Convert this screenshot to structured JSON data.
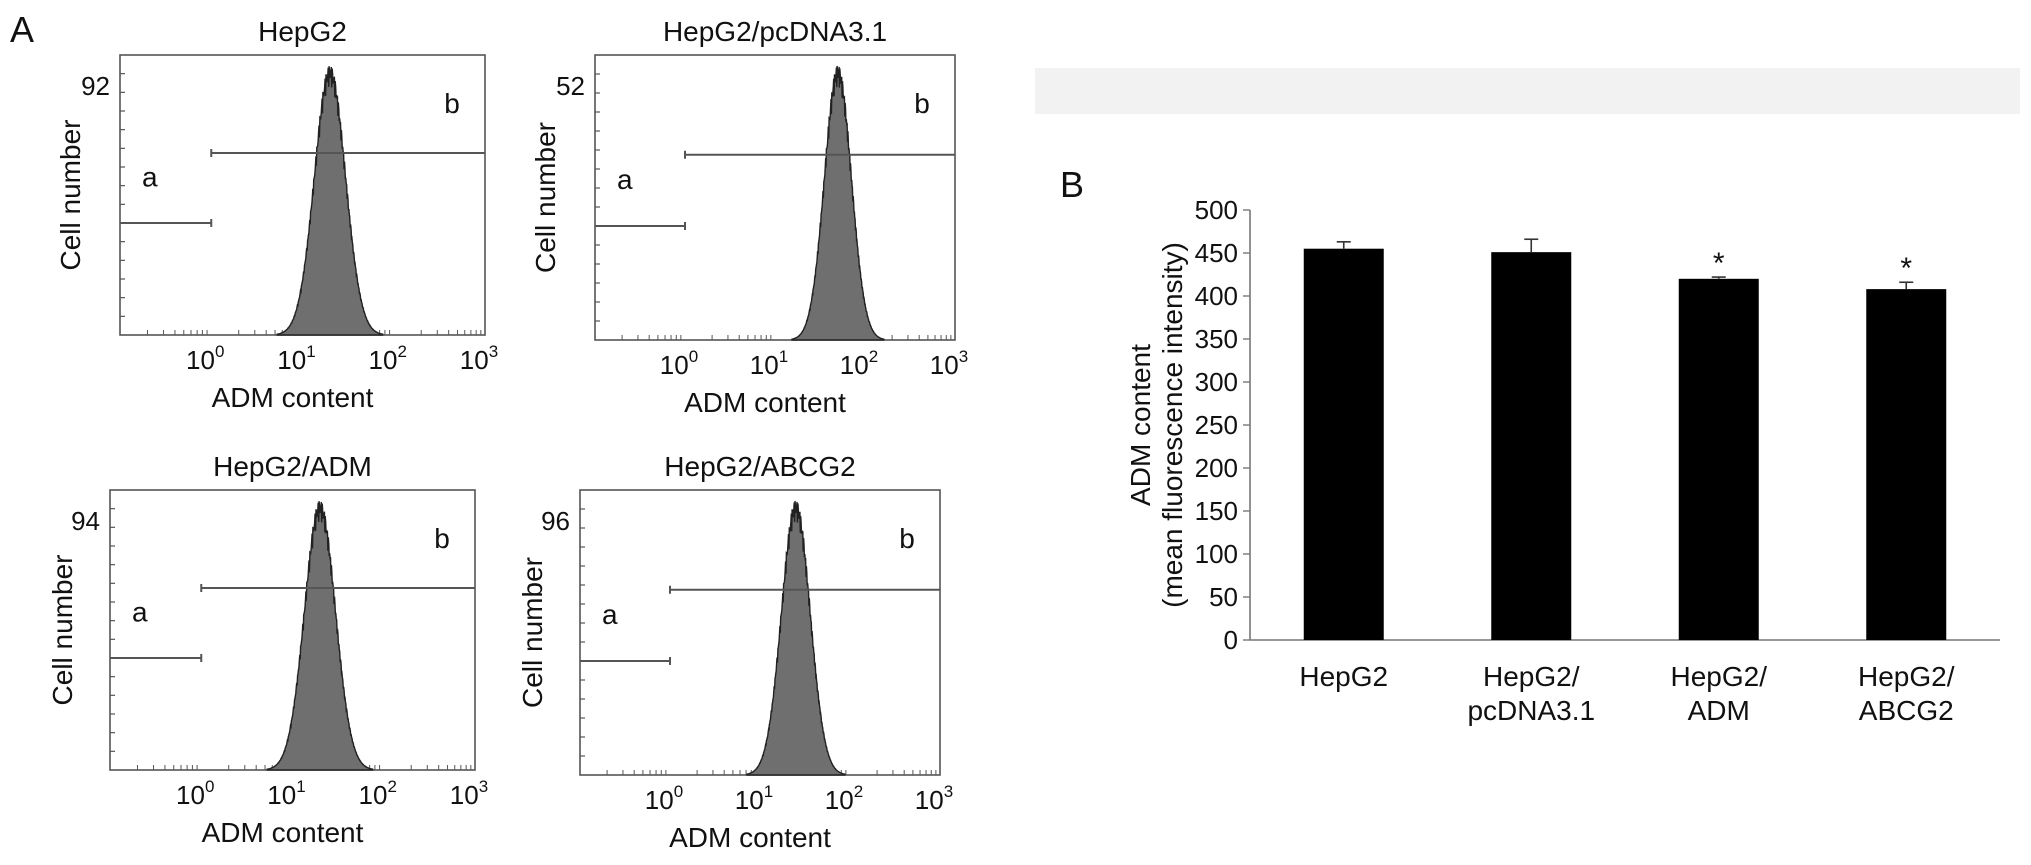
{
  "figure": {
    "panel_a_letter": "A",
    "panel_b_letter": "B"
  },
  "colors": {
    "histogram_fill": "#6f6f6f",
    "histogram_stroke": "#222222",
    "bar_fill": "#000000",
    "axis": "#555555",
    "marker_line": "#e6e6e6"
  },
  "chart_data": [
    {
      "type": "area",
      "title": "HepG2",
      "xlabel": "ADM content",
      "ylabel": "Cell number",
      "x_scale": "log",
      "xlim": [
        0.1,
        1000
      ],
      "x_ticks": [
        {
          "base": "10",
          "exp": "0"
        },
        {
          "base": "10",
          "exp": "1"
        },
        {
          "base": "10",
          "exp": "2"
        },
        {
          "base": "10",
          "exp": "3"
        }
      ],
      "y_max_label": "92",
      "peak_label": "92",
      "gates": [
        {
          "name": "a",
          "from": 0.1,
          "to": 1
        },
        {
          "name": "b",
          "from": 1,
          "to": 1000
        }
      ],
      "distribution": {
        "peak": 20,
        "spread_log10": 0.17
      }
    },
    {
      "type": "area",
      "title": "HepG2/pcDNA3.1",
      "xlabel": "ADM content",
      "ylabel": "Cell number",
      "x_scale": "log",
      "xlim": [
        0.1,
        1000
      ],
      "x_ticks": [
        {
          "base": "10",
          "exp": "0"
        },
        {
          "base": "10",
          "exp": "1"
        },
        {
          "base": "10",
          "exp": "2"
        },
        {
          "base": "10",
          "exp": "3"
        }
      ],
      "y_max_label": "52",
      "peak_label": "52",
      "gates": [
        {
          "name": "a",
          "from": 0.1,
          "to": 1
        },
        {
          "name": "b",
          "from": 1,
          "to": 1000
        }
      ],
      "distribution": {
        "peak": 50,
        "spread_log10": 0.15
      }
    },
    {
      "type": "area",
      "title": "HepG2/ADM",
      "xlabel": "ADM content",
      "ylabel": "Cell number",
      "x_scale": "log",
      "xlim": [
        0.1,
        1000
      ],
      "x_ticks": [
        {
          "base": "10",
          "exp": "0"
        },
        {
          "base": "10",
          "exp": "1"
        },
        {
          "base": "10",
          "exp": "2"
        },
        {
          "base": "10",
          "exp": "3"
        }
      ],
      "y_max_label": "94",
      "peak_label": "94",
      "gates": [
        {
          "name": "a",
          "from": 0.1,
          "to": 1
        },
        {
          "name": "b",
          "from": 1,
          "to": 1000
        }
      ],
      "distribution": {
        "peak": 20,
        "spread_log10": 0.17
      }
    },
    {
      "type": "area",
      "title": "HepG2/ABCG2",
      "xlabel": "ADM content",
      "ylabel": "Cell number",
      "x_scale": "log",
      "xlim": [
        0.1,
        1000
      ],
      "x_ticks": [
        {
          "base": "10",
          "exp": "0"
        },
        {
          "base": "10",
          "exp": "1"
        },
        {
          "base": "10",
          "exp": "2"
        },
        {
          "base": "10",
          "exp": "3"
        }
      ],
      "y_max_label": "96",
      "peak_label": "96",
      "gates": [
        {
          "name": "a",
          "from": 0.1,
          "to": 1
        },
        {
          "name": "b",
          "from": 1,
          "to": 1000
        }
      ],
      "distribution": {
        "peak": 25,
        "spread_log10": 0.16
      }
    },
    {
      "type": "bar",
      "categories": [
        [
          "HepG2"
        ],
        [
          "HepG2/",
          "pcDNA3.1"
        ],
        [
          "HepG2/",
          "ADM"
        ],
        [
          "HepG2/",
          "ABCG2"
        ]
      ],
      "values": [
        455,
        451,
        420,
        408
      ],
      "errors": [
        8,
        15,
        2,
        8
      ],
      "significance": [
        "",
        "",
        "*",
        "*"
      ],
      "ylabel_lines": [
        "ADM content",
        "(mean fluorescence intensity)"
      ],
      "ylim": [
        0,
        500
      ],
      "y_ticks": [
        0,
        50,
        100,
        150,
        200,
        250,
        300,
        350,
        400,
        450,
        500
      ],
      "grid": false
    }
  ]
}
